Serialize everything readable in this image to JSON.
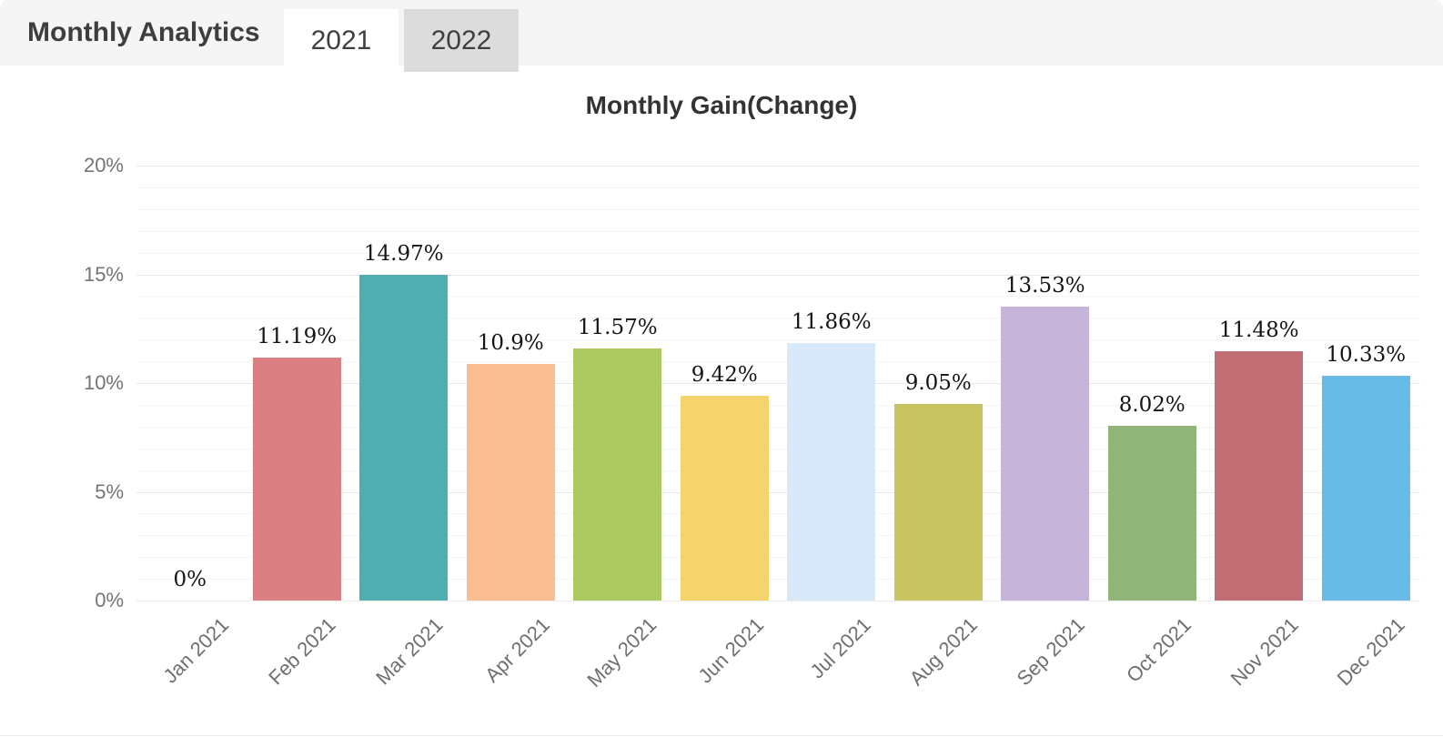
{
  "header": {
    "title": "Monthly Analytics",
    "tabs": [
      {
        "label": "2021",
        "active": true
      },
      {
        "label": "2022",
        "active": false
      }
    ]
  },
  "chart_data": {
    "type": "bar",
    "title": "Monthly Gain(Change)",
    "categories": [
      "Jan 2021",
      "Feb 2021",
      "Mar 2021",
      "Apr 2021",
      "May 2021",
      "Jun 2021",
      "Jul 2021",
      "Aug 2021",
      "Sep 2021",
      "Oct 2021",
      "Nov 2021",
      "Dec 2021"
    ],
    "values": [
      0,
      11.19,
      14.97,
      10.9,
      11.57,
      9.42,
      11.86,
      9.05,
      13.53,
      8.02,
      11.48,
      10.33
    ],
    "labels": [
      "0%",
      "11.19%",
      "14.97%",
      "10.9%",
      "11.57%",
      "9.42%",
      "11.86%",
      "9.05%",
      "13.53%",
      "8.02%",
      "11.48%",
      "10.33%"
    ],
    "bar_colors": [
      null,
      "#da8082",
      "#50aeb1",
      "#fbbd92",
      "#abc95e",
      "#f4d46b",
      "#d8eafa",
      "#c9c462",
      "#c6b4da",
      "#91b478",
      "#c16e74",
      "#68bbe6"
    ],
    "xlabel": "",
    "ylabel": "",
    "y_ticks": [
      "0%",
      "5%",
      "10%",
      "15%",
      "20%"
    ],
    "ylim": [
      0,
      20
    ],
    "y_major_step": 5,
    "y_minor_step": 1,
    "grid": true,
    "legend": "none",
    "axis_label_color": "#6f6f6f",
    "data_label_color": "#141414",
    "major_grid_color": "#e8e8e8",
    "minor_grid_color": "#f5f5f5"
  }
}
